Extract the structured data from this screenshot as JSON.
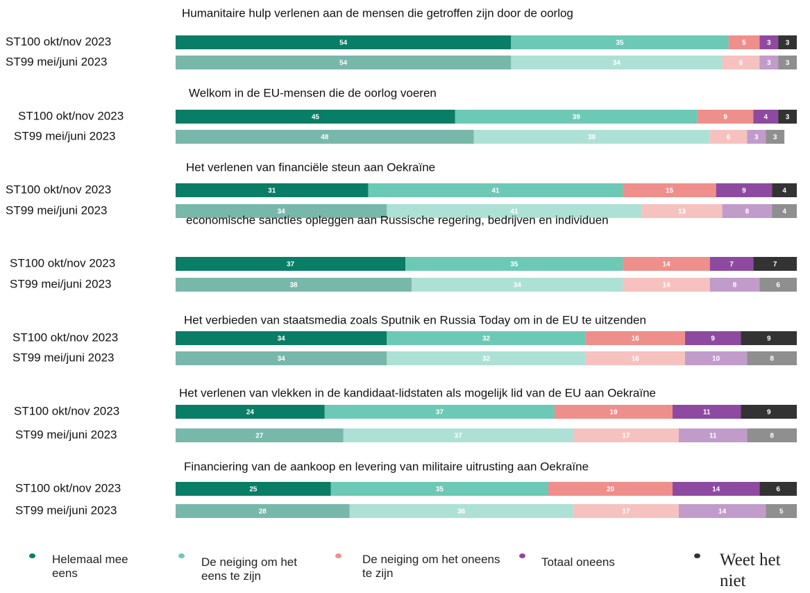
{
  "chart_data": {
    "type": "bar",
    "orientation": "horizontal",
    "stacked": true,
    "group_titles": [
      "Humanitaire hulp verlenen aan de mensen die getroffen zijn door de oorlog",
      "Welkom in de EU-mensen die de oorlog voeren",
      "Het verlenen van financiële steun aan Oekraïne",
      "economische sancties opleggen aan Russische regering, bedrijven en individuen",
      "Het verbieden van staatsmedia zoals Sputnik en Russia Today om in de EU te uitzenden",
      "Het verlenen van vlekken in de kandidaat-lidstaten als mogelijk lid van de EU aan Oekraïne",
      "Financiering van de aankoop en levering van militaire uitrusting aan Oekraïne"
    ],
    "categories": [
      "ST100 okt/nov 2023",
      "ST99 mei/juni 2023",
      "ST100 okt/nov 2023",
      "ST99 mei/juni 2023",
      "ST100 okt/nov 2023",
      "ST99 mei/juni 2023",
      "ST100 okt/nov 2023",
      "ST99 mei/juni 2023",
      "ST100 okt/nov 2023",
      "ST99 mei/juni 2023",
      "ST100 okt/nov 2023",
      "ST99 mei/juni 2023",
      "ST100 okt/nov 2023",
      "ST99 mei/juni 2023"
    ],
    "series": [
      {
        "name": "Helemaal mee eens",
        "color": "#0a7d66",
        "values": [
          54,
          54,
          45,
          48,
          31,
          34,
          37,
          38,
          34,
          34,
          24,
          27,
          25,
          28
        ]
      },
      {
        "name": "De neiging om het eens te zijn",
        "color": "#6cc9b5",
        "values": [
          35,
          34,
          39,
          38,
          41,
          41,
          35,
          34,
          32,
          32,
          37,
          37,
          35,
          36
        ]
      },
      {
        "name": "De neiging om het oneens te zijn",
        "color": "#ef8f8c",
        "values": [
          5,
          6,
          9,
          6,
          15,
          13,
          14,
          14,
          16,
          16,
          19,
          17,
          20,
          17
        ]
      },
      {
        "name": "Totaal oneens",
        "color": "#8e4aa0",
        "values": [
          3,
          3,
          4,
          3,
          9,
          8,
          7,
          8,
          9,
          10,
          11,
          11,
          14,
          14
        ]
      },
      {
        "name": "Weet het niet",
        "color": "#333333",
        "values": [
          3,
          3,
          3,
          3,
          4,
          4,
          7,
          6,
          9,
          8,
          9,
          8,
          6,
          5
        ]
      }
    ]
  }
}
